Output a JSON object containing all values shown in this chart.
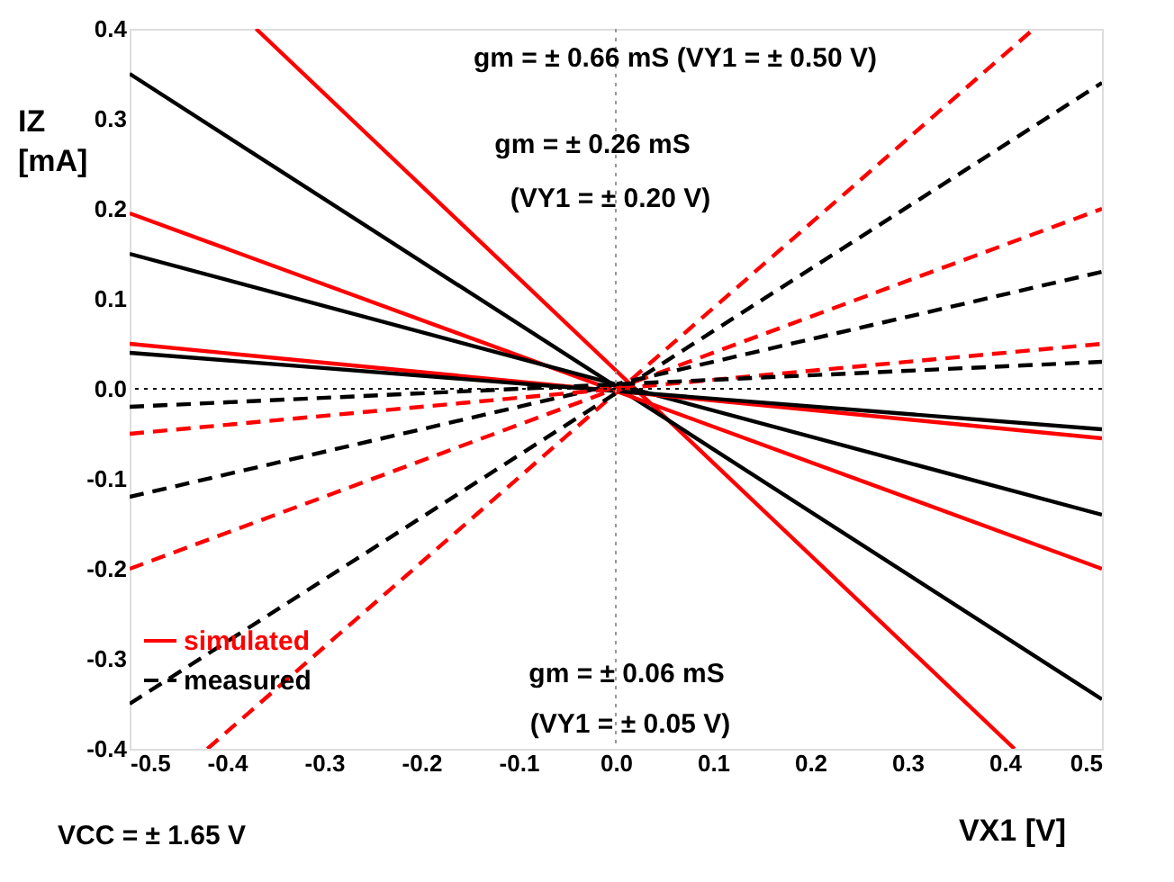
{
  "chart_data": {
    "type": "line",
    "xlabel": "VX1 [V]",
    "ylabel": "IZ [mA]",
    "xlim": [
      -0.5,
      0.5
    ],
    "ylim": [
      -0.4,
      0.4
    ],
    "xticks": [
      -0.5,
      -0.4,
      -0.3,
      -0.2,
      -0.1,
      {
        "value": 0,
        "label": "0.0"
      },
      0.1,
      0.2,
      0.3,
      0.4,
      0.5
    ],
    "yticks": [
      -0.4,
      -0.3,
      -0.2,
      -0.1,
      {
        "value": 0,
        "label": "0.0"
      },
      0.1,
      0.2,
      0.3,
      0.4
    ],
    "grid": false,
    "legend": "bottom left",
    "ref_lines": [
      {
        "axis": "x",
        "value": 0,
        "line_style": "dotted",
        "color": "#999999"
      },
      {
        "axis": "y",
        "value": 0,
        "line_style": "dotted",
        "color": "#000000"
      }
    ],
    "series": [
      {
        "name": "simulated",
        "color": "#ff0000",
        "line_style": "solid",
        "x": [
          -0.37,
          0.41
        ],
        "values": [
          0.4,
          -0.4
        ]
      },
      {
        "color": "#000000",
        "line_style": "solid",
        "x": [
          -0.5,
          0.5
        ],
        "values": [
          0.35,
          -0.345
        ]
      },
      {
        "color": "#ff0000",
        "line_style": "solid",
        "x": [
          -0.5,
          0.5
        ],
        "values": [
          0.195,
          -0.2
        ]
      },
      {
        "color": "#000000",
        "line_style": "solid",
        "x": [
          -0.5,
          0.5
        ],
        "values": [
          0.15,
          -0.14
        ]
      },
      {
        "color": "#ff0000",
        "line_style": "solid",
        "x": [
          -0.5,
          0.5
        ],
        "values": [
          0.05,
          -0.055
        ]
      },
      {
        "color": "#000000",
        "line_style": "solid",
        "x": [
          -0.5,
          0.5
        ],
        "values": [
          0.04,
          -0.045
        ]
      },
      {
        "color": "#ff0000",
        "line_style": "dashed",
        "x": [
          -0.42,
          0.43
        ],
        "values": [
          -0.4,
          0.4
        ]
      },
      {
        "name": "measured",
        "color": "#000000",
        "line_style": "dashed",
        "x": [
          -0.5,
          0.5
        ],
        "values": [
          -0.35,
          0.34
        ]
      },
      {
        "color": "#ff0000",
        "line_style": "dashed",
        "x": [
          -0.5,
          0.5
        ],
        "values": [
          -0.2,
          0.2
        ]
      },
      {
        "color": "#000000",
        "line_style": "dashed",
        "x": [
          -0.5,
          0.5
        ],
        "values": [
          -0.12,
          0.13
        ]
      },
      {
        "color": "#ff0000",
        "line_style": "dashed",
        "x": [
          -0.5,
          0.5
        ],
        "values": [
          -0.05,
          0.05
        ]
      },
      {
        "color": "#000000",
        "line_style": "dashed",
        "x": [
          -0.5,
          0.5
        ],
        "values": [
          -0.02,
          0.03
        ]
      }
    ],
    "annotations": [
      "gm = ± 0.66 mS (VY1 = ± 0.50 V)",
      "gm = ± 0.26 mS",
      "(VY1 = ± 0.20 V)",
      "gm = ± 0.06 mS",
      "(VY1 = ± 0.05 V)",
      "VCC = ± 1.65 V"
    ]
  }
}
